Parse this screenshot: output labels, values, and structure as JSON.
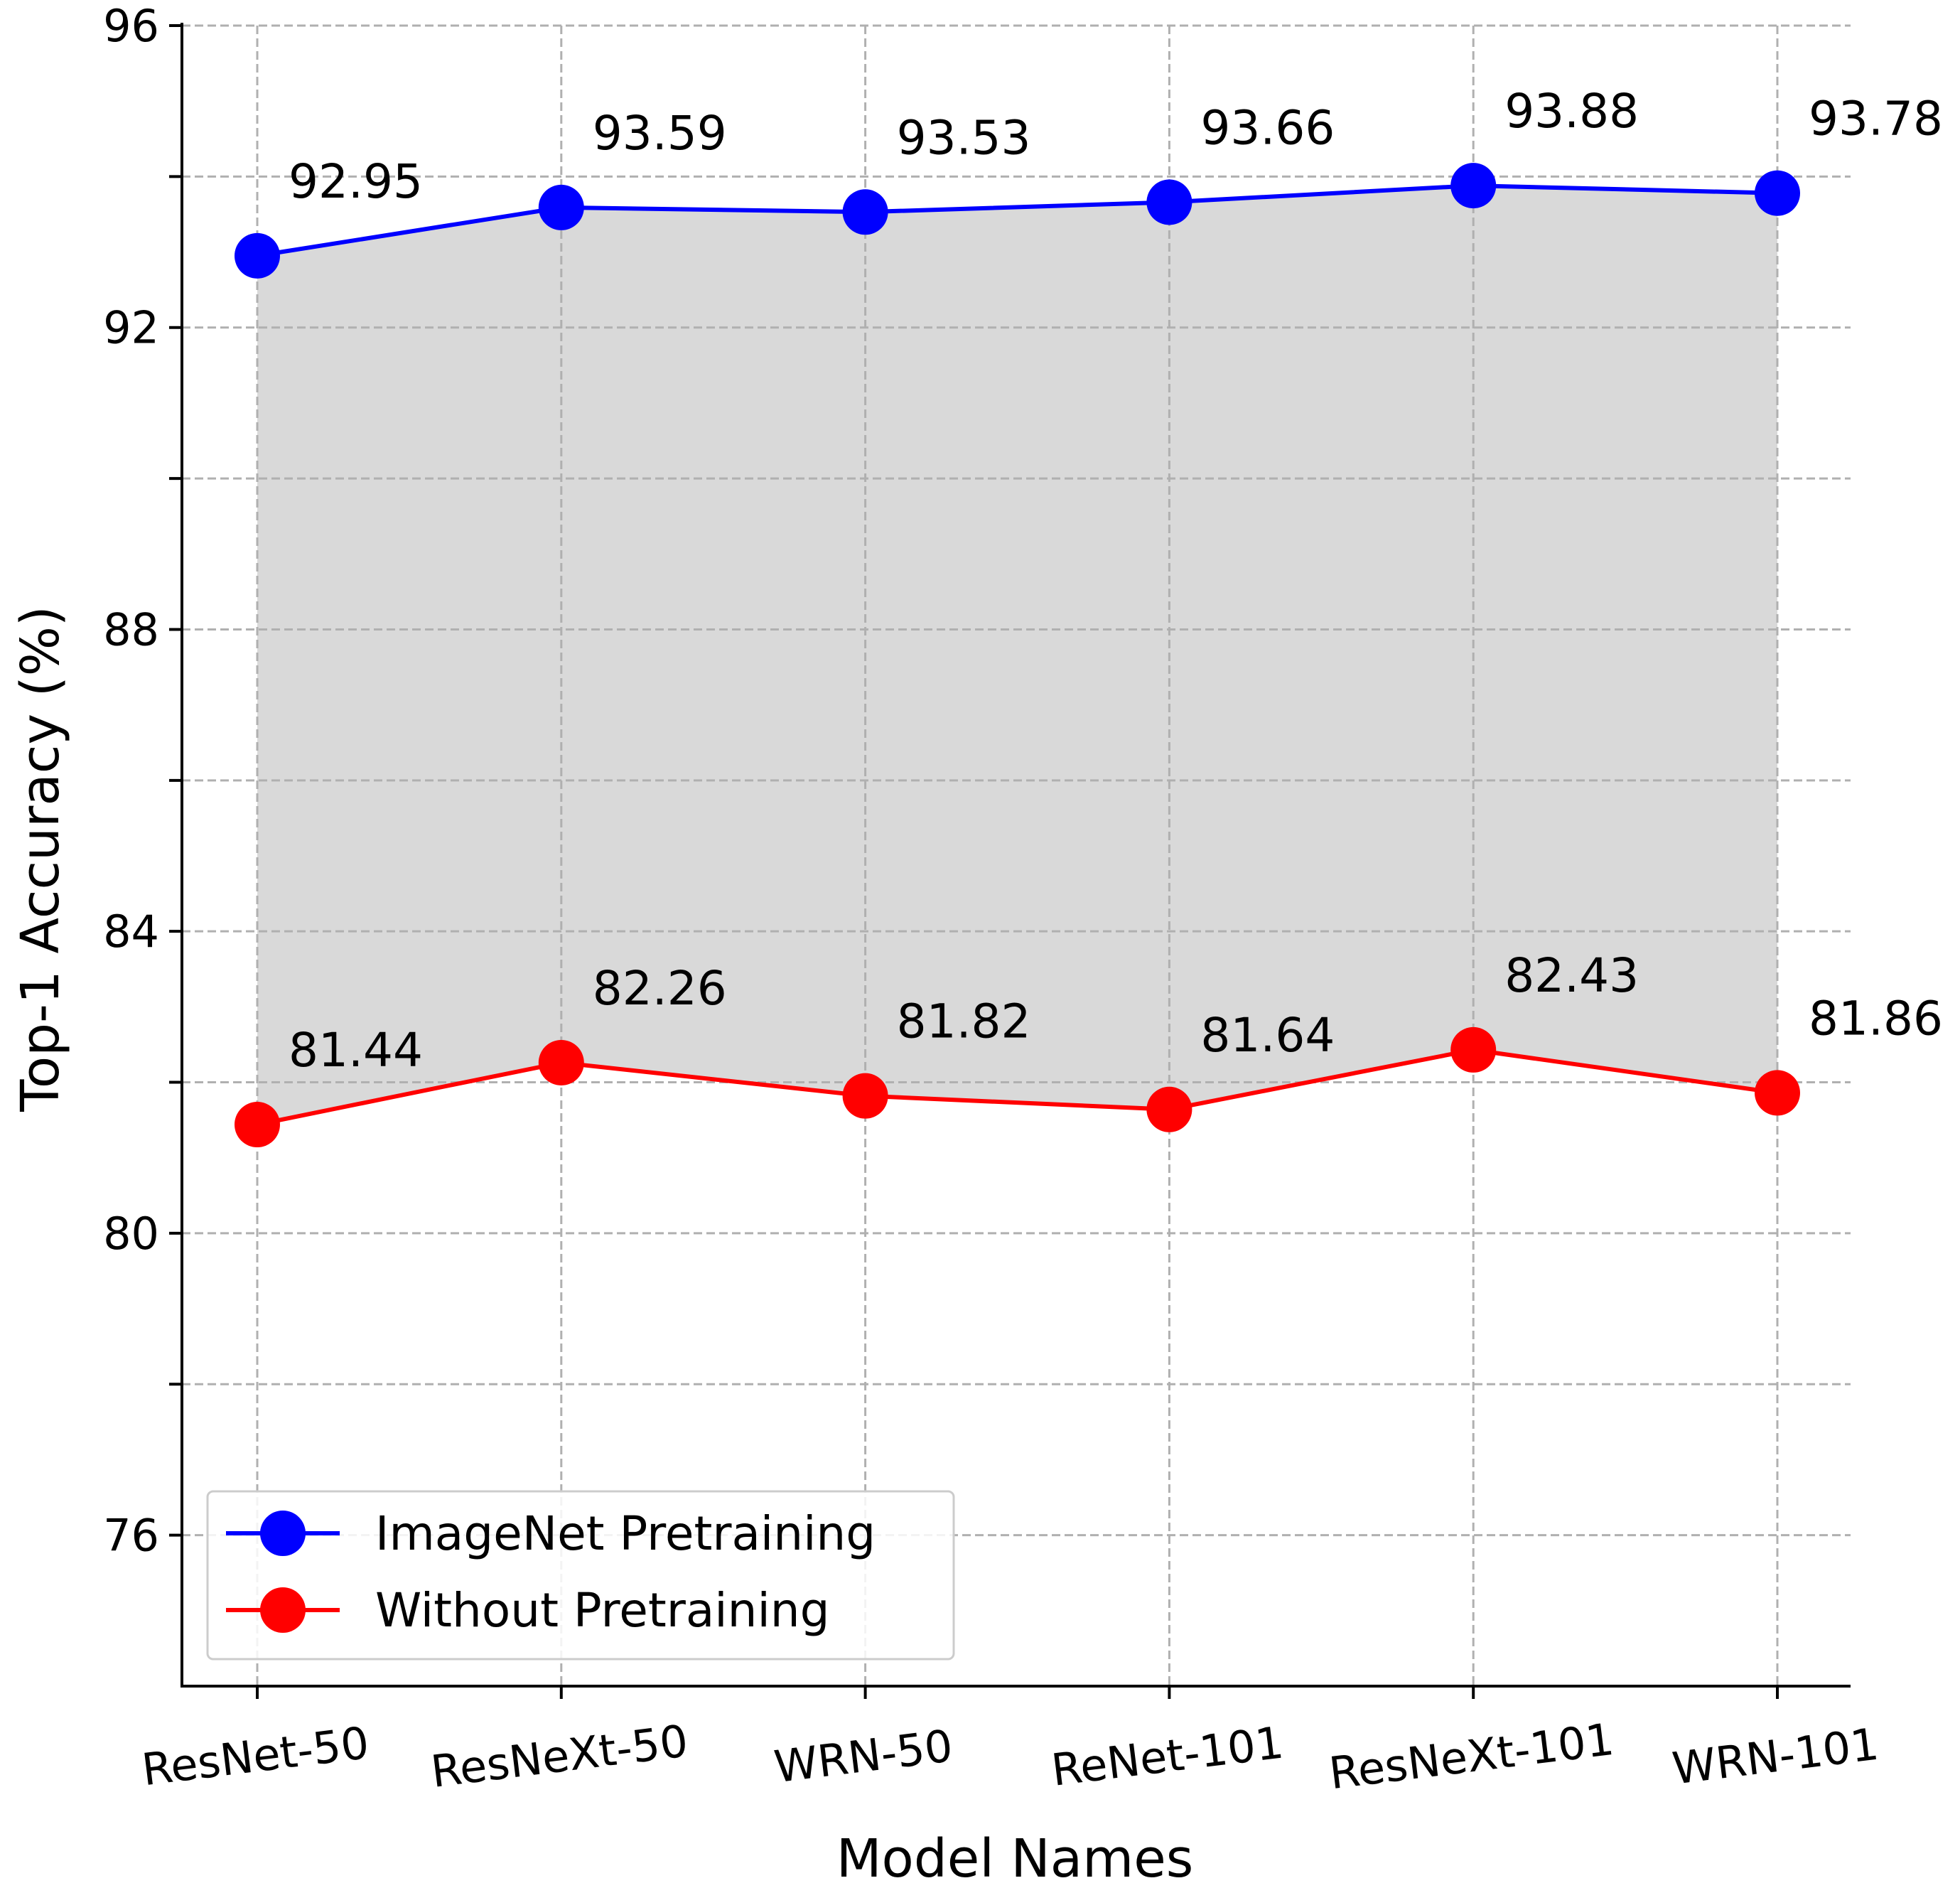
{
  "chart_data": {
    "type": "line",
    "title": "",
    "xlabel": "Model Names",
    "ylabel": "Top-1 Accuracy (%)",
    "categories": [
      "ResNet-50",
      "ResNeXt-50",
      "WRN-50",
      "ReNet-101",
      "ResNeXt-101",
      "WRN-101"
    ],
    "ylim": [
      74,
      96
    ],
    "yticks": [
      76,
      80,
      84,
      88,
      92,
      96
    ],
    "yticks_minor": [
      78,
      82,
      86,
      90,
      94
    ],
    "grid": true,
    "fill_between": {
      "color": "#d9d9d9",
      "series": [
        0,
        1
      ]
    },
    "legend_position": "bottom-left",
    "series": [
      {
        "name": "ImageNet Pretraining",
        "color": "#0000ff",
        "values": [
          92.95,
          93.59,
          93.53,
          93.66,
          93.88,
          93.78
        ],
        "labels": [
          "92.95",
          "93.59",
          "93.53",
          "93.66",
          "93.88",
          "93.78"
        ]
      },
      {
        "name": "Without Pretraining",
        "color": "#ff0000",
        "values": [
          81.44,
          82.26,
          81.82,
          81.64,
          82.43,
          81.86
        ],
        "labels": [
          "81.44",
          "82.26",
          "81.82",
          "81.64",
          "82.43",
          "81.86"
        ]
      }
    ]
  }
}
